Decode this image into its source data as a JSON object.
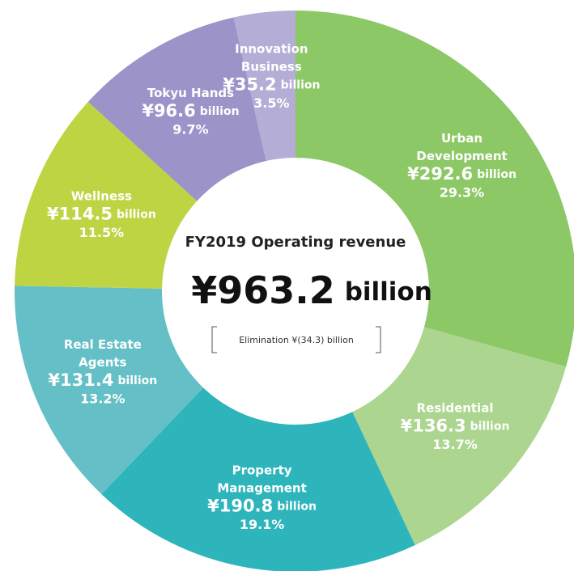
{
  "chart_data": {
    "type": "pie",
    "title": "FY2019 Operating revenue",
    "total_label": "¥963.2",
    "total_unit": "billion",
    "note": "Elimination ¥(34.3) billion",
    "categories": [
      "Urban\nDevelopment",
      "Residential",
      "Property\nManagement",
      "Real Estate\nAgents",
      "Wellness",
      "Tokyu Hands",
      "Innovation\nBusiness"
    ],
    "values": [
      292.6,
      136.3,
      190.8,
      131.4,
      114.5,
      96.6,
      35.2
    ],
    "value_labels": [
      "¥292.6",
      "¥136.3",
      "¥190.8",
      "¥131.4",
      "¥114.5",
      "¥96.6",
      "¥35.2"
    ],
    "value_unit": "billion",
    "percentage_labels": [
      "29.3%",
      "13.7%",
      "19.1%",
      "13.2%",
      "11.5%",
      "9.7%",
      "3.5%"
    ],
    "colors": [
      "#8cc866",
      "#acd590",
      "#2db5bb",
      "#64c0c6",
      "#bfd443",
      "#9c94c9",
      "#b4aed7"
    ]
  }
}
